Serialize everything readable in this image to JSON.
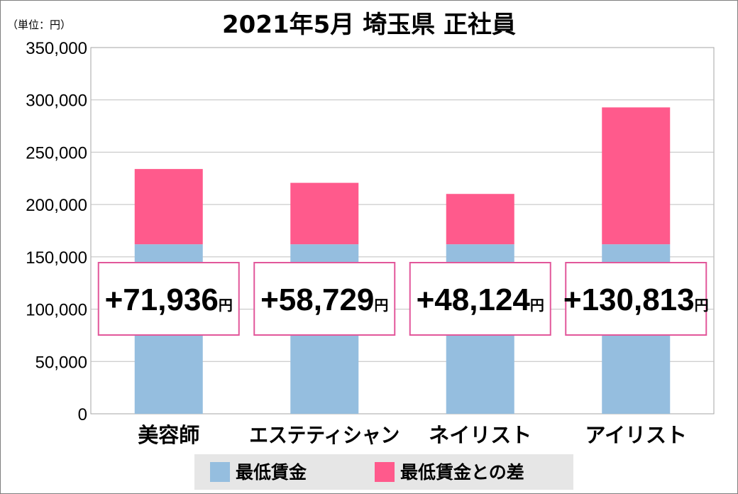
{
  "chart_data": {
    "type": "bar",
    "title": "2021年5月 埼玉県 正社員",
    "unit_label": "（単位：円）",
    "categories": [
      "美容師",
      "エステティシャン",
      "ネイリスト",
      "アイリスト"
    ],
    "series": [
      {
        "name": "最低賃金",
        "values": [
          162000,
          162000,
          162000,
          162000
        ],
        "color": "#95bedf"
      },
      {
        "name": "最低賃金との差",
        "values": [
          71936,
          58729,
          48124,
          130813
        ],
        "color": "#ff5a8c"
      }
    ],
    "difference_labels": [
      "+71,936",
      "+58,729",
      "+48,124",
      "+130,813"
    ],
    "difference_unit": "円",
    "ylim": [
      0,
      350000
    ],
    "y_ticks": [
      0,
      50000,
      100000,
      150000,
      200000,
      250000,
      300000,
      350000
    ],
    "y_tick_labels": [
      "0",
      "50,000",
      "100,000",
      "150,000",
      "200,000",
      "250,000",
      "300,000",
      "350,000"
    ],
    "grid": true,
    "legend_position": "bottom",
    "label_box_border_color": "#e2579a"
  }
}
